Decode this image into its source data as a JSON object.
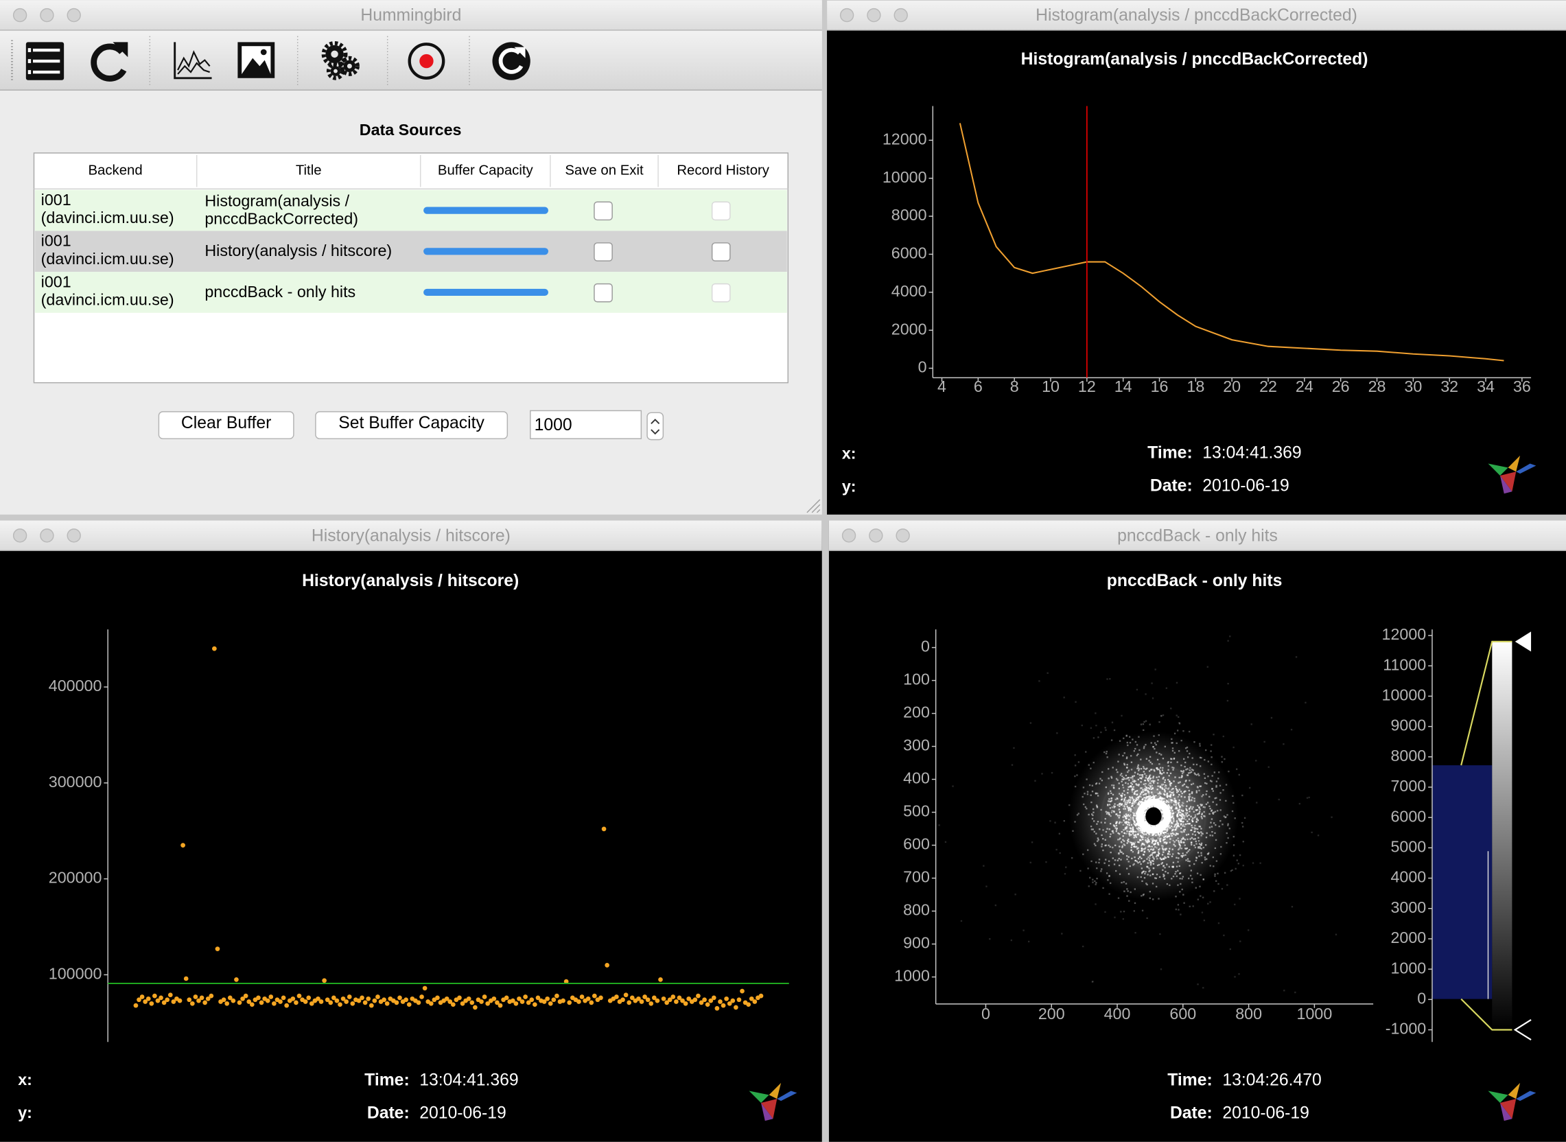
{
  "windows": {
    "main": "Hummingbird",
    "histogram": "Histogram(analysis / pnccdBackCorrected)",
    "history": "History(analysis / hitscore)",
    "image": "pnccdBack - only hits"
  },
  "data_sources": {
    "title": "Data Sources",
    "columns": [
      "Backend",
      "Title",
      "Buffer Capacity",
      "Save on Exit",
      "Record History"
    ],
    "rows": [
      {
        "backend": [
          "i001",
          "(davinci.icm.uu.se)"
        ],
        "title": [
          "Histogram(analysis /",
          "pnccdBackCorrected)"
        ],
        "save_on_exit": false,
        "record_history": false,
        "record_history_enabled": false
      },
      {
        "backend": [
          "i001",
          "(davinci.icm.uu.se)"
        ],
        "title": [
          "History(analysis / hitscore)"
        ],
        "save_on_exit": false,
        "record_history": false,
        "record_history_enabled": true
      },
      {
        "backend": [
          "i001",
          "(davinci.icm.uu.se)"
        ],
        "title": [
          "pnccdBack - only hits"
        ],
        "save_on_exit": false,
        "record_history": false,
        "record_history_enabled": false
      }
    ]
  },
  "buttons": [
    "Clear Buffer",
    "Set Buffer Capacity"
  ],
  "buffer_capacity": 1000,
  "chart_data": [
    {
      "type": "line",
      "title": "Histogram(analysis / pnccdBackCorrected)",
      "x": [
        5,
        6,
        7,
        8,
        9,
        10,
        11,
        12,
        13,
        14,
        15,
        16,
        17,
        18,
        20,
        22,
        24,
        26,
        28,
        30,
        32,
        34,
        35
      ],
      "values": [
        12900,
        8700,
        6400,
        5300,
        5000,
        5200,
        5400,
        5600,
        5600,
        5000,
        4300,
        3500,
        2800,
        2200,
        1500,
        1150,
        1050,
        950,
        900,
        750,
        650,
        500,
        400
      ],
      "color": "#f0a030",
      "marker_x": 12,
      "marker_color": "#e00000",
      "xlim": [
        3.5,
        36.5
      ],
      "ylim": [
        -500,
        13800
      ],
      "xticks": [
        4,
        6,
        8,
        10,
        12,
        14,
        16,
        18,
        20,
        22,
        24,
        26,
        28,
        30,
        32,
        34,
        36
      ],
      "yticks": [
        0,
        2000,
        4000,
        6000,
        8000,
        10000,
        12000
      ],
      "readout": {
        "x_label": "x:",
        "y_label": "y:",
        "time_label": "Time:",
        "time": "13:04:41.369",
        "date_label": "Date:",
        "date": "2010-06-19"
      }
    },
    {
      "type": "scatter",
      "title": "History(analysis / hitscore)",
      "values": [
        68000,
        74000,
        77000,
        72000,
        75000,
        70000,
        78000,
        73000,
        76000,
        71000,
        74000,
        79000,
        72000,
        75000,
        73000,
        235000,
        96000,
        74000,
        70000,
        77000,
        73000,
        76000,
        71000,
        75000,
        78000,
        440000,
        127000,
        72000,
        74000,
        70000,
        76000,
        73000,
        95000,
        71000,
        75000,
        78000,
        72000,
        69000,
        74000,
        76000,
        71000,
        75000,
        73000,
        77000,
        70000,
        74000,
        72000,
        76000,
        68000,
        73000,
        75000,
        71000,
        78000,
        74000,
        72000,
        76000,
        70000,
        73000,
        75000,
        72000,
        94000,
        74000,
        71000,
        76000,
        73000,
        69000,
        75000,
        72000,
        77000,
        70000,
        74000,
        73000,
        76000,
        71000,
        75000,
        68000,
        73000,
        77000,
        72000,
        74000,
        70000,
        75000,
        73000,
        71000,
        76000,
        72000,
        74000,
        69000,
        75000,
        73000,
        71000,
        77000,
        86000,
        72000,
        70000,
        74000,
        76000,
        71000,
        73000,
        75000,
        72000,
        69000,
        74000,
        76000,
        70000,
        73000,
        75000,
        71000,
        66000,
        74000,
        72000,
        77000,
        70000,
        73000,
        75000,
        71000,
        68000,
        74000,
        76000,
        72000,
        73000,
        70000,
        75000,
        72000,
        77000,
        71000,
        74000,
        69000,
        76000,
        73000,
        72000,
        75000,
        70000,
        74000,
        78000,
        72000,
        73000,
        93000,
        71000,
        76000,
        74000,
        72000,
        77000,
        73000,
        75000,
        71000,
        78000,
        74000,
        76000,
        252000,
        110000,
        73000,
        75000,
        77000,
        72000,
        74000,
        79000,
        71000,
        76000,
        73000,
        75000,
        72000,
        77000,
        74000,
        70000,
        76000,
        73000,
        95000,
        75000,
        71000,
        74000,
        77000,
        72000,
        76000,
        73000,
        70000,
        75000,
        72000,
        74000,
        78000,
        71000,
        74000,
        69000,
        73000,
        76000,
        65000,
        72000,
        68000,
        75000,
        70000,
        73000,
        66000,
        74000,
        83000,
        71000,
        69000,
        75000,
        72000,
        76000,
        78000
      ],
      "color": "#f5a623",
      "hline": 91000,
      "hline_color": "#22c022",
      "ylim": [
        30000,
        460000
      ],
      "yticks": [
        100000,
        200000,
        300000,
        400000
      ],
      "readout": {
        "x_label": "x:",
        "y_label": "y:",
        "time_label": "Time:",
        "time": "13:04:41.369",
        "date_label": "Date:",
        "date": "2010-06-19"
      }
    },
    {
      "type": "image",
      "title": "pnccdBack - only hits",
      "xlim": [
        -152,
        1179
      ],
      "ylim": [
        1082,
        -55
      ],
      "xticks": [
        0,
        200,
        400,
        600,
        800,
        1000
      ],
      "yticks": [
        0,
        100,
        200,
        300,
        400,
        500,
        600,
        700,
        800,
        900,
        1000
      ],
      "colorbar": {
        "ylim": [
          -1400,
          12200
        ],
        "yticks": [
          -1000,
          0,
          1000,
          2000,
          3000,
          4000,
          5000,
          6000,
          7000,
          8000,
          9000,
          10000,
          11000,
          12000
        ],
        "levels": [
          -1000,
          11800
        ]
      },
      "readout": {
        "time_label": "Time:",
        "time": "13:04:26.470",
        "date_label": "Date:",
        "date": "2010-06-19"
      }
    }
  ]
}
